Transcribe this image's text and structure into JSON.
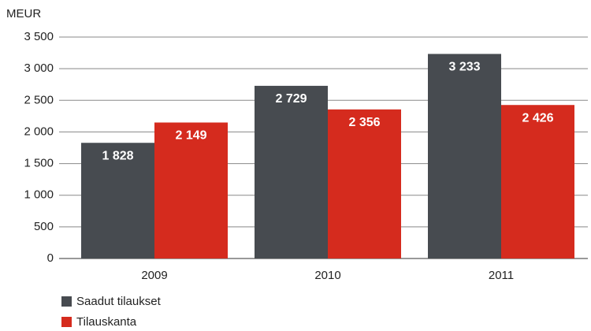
{
  "chart_data": {
    "type": "bar",
    "y_label": "MEUR",
    "categories": [
      "2009",
      "2010",
      "2011"
    ],
    "series": [
      {
        "name": "Saadut tilaukset",
        "color": "#474b50",
        "values": [
          1828,
          2729,
          3233
        ],
        "value_labels": [
          "1 828",
          "2 729",
          "3 233"
        ]
      },
      {
        "name": "Tilauskanta",
        "color": "#d52b1e",
        "values": [
          2149,
          2356,
          2426
        ],
        "value_labels": [
          "2 149",
          "2 356",
          "2 426"
        ]
      }
    ],
    "ylim": [
      0,
      3500
    ],
    "yticks": [
      0,
      500,
      {
        "value": 1000,
        "label": "1 000"
      },
      {
        "value": 1500,
        "label": "1 500"
      },
      {
        "value": 2000,
        "label": "2 000"
      },
      {
        "value": 2500,
        "label": "2 500"
      },
      {
        "value": 3000,
        "label": "3 000"
      },
      {
        "value": 3500,
        "label": "3 500"
      }
    ],
    "grid": true,
    "legend": "bottom-left"
  }
}
